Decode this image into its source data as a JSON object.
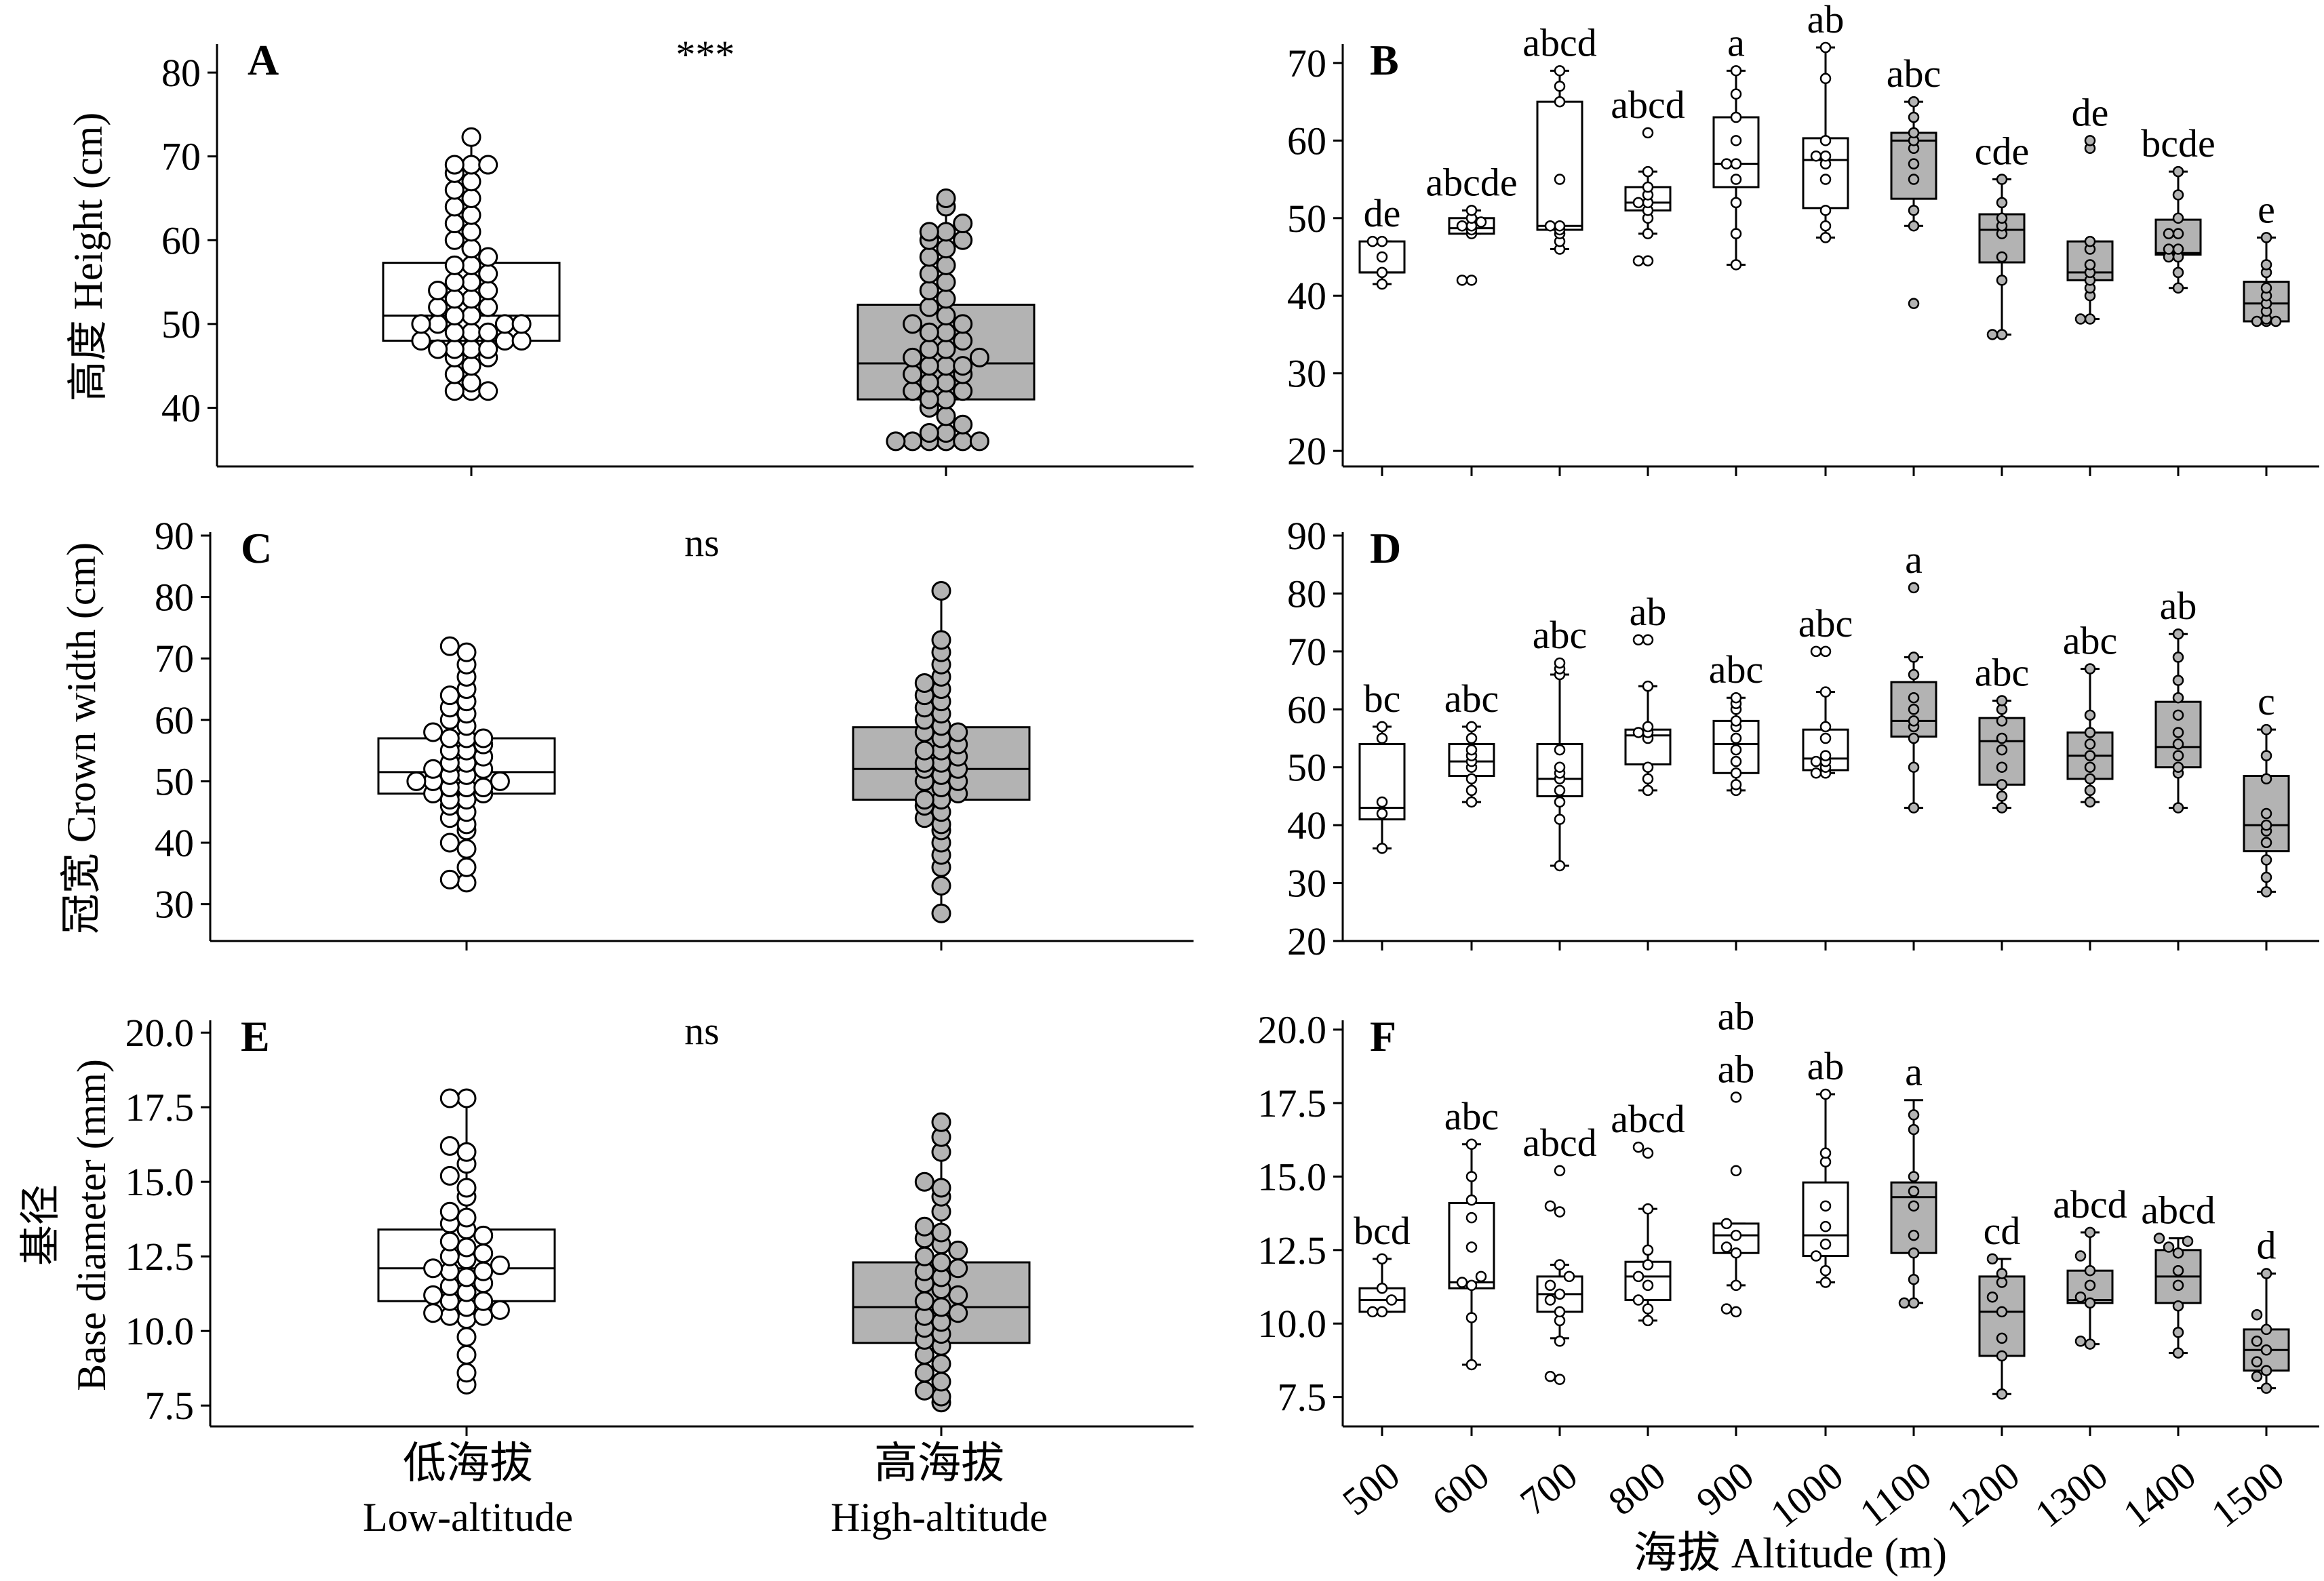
{
  "figure": {
    "panel_letters": [
      "A",
      "B",
      "C",
      "D",
      "E",
      "F"
    ],
    "x_groups": [
      "低海拔\nLow-altitude",
      "高海拔\nHigh-altitude"
    ],
    "x_group_labels_cn": [
      "低海拔",
      "高海拔"
    ],
    "x_group_labels_en": [
      "Low-altitude",
      "High-altitude"
    ],
    "altitude_xlabel": "海拔 Altitude (m)",
    "altitude_ticks": [
      "500",
      "600",
      "700",
      "800",
      "900",
      "1000",
      "1100",
      "1200",
      "1300",
      "1400",
      "1500"
    ],
    "colors": {
      "low": "#ffffff",
      "high": "#b3b3b3",
      "stroke": "#000000"
    }
  },
  "chart_data": [
    {
      "panel": "A",
      "type": "box",
      "ylabel": "高度 Height (cm)",
      "ylim": [
        33,
        83
      ],
      "yticks": [
        40,
        50,
        60,
        70,
        80
      ],
      "significance": "***",
      "categories": [
        "Low-altitude",
        "High-altitude"
      ],
      "boxes": [
        {
          "q1": 48,
          "median": 51,
          "q3": 57.3,
          "whisker_low": 42,
          "whisker_high": 72.3
        },
        {
          "q1": 41,
          "median": 45.3,
          "q3": 52.3,
          "whisker_low": 36,
          "whisker_high": 65
        }
      ],
      "points": [
        [
          42,
          42,
          42,
          43,
          44,
          45,
          46,
          46,
          47,
          47,
          47,
          47,
          48,
          48,
          48,
          49,
          49,
          49,
          50,
          50,
          50,
          50,
          51,
          51,
          52,
          52,
          53,
          53,
          54,
          54,
          55,
          55,
          56,
          57,
          57,
          58,
          59,
          60,
          61,
          62,
          63,
          64,
          65,
          66,
          67,
          68,
          69,
          69,
          69,
          72.3
        ],
        [
          36,
          36,
          36,
          36,
          36,
          36,
          37,
          37,
          38,
          39,
          40,
          41,
          41,
          42,
          42,
          43,
          43,
          44,
          44,
          45,
          45,
          45,
          46,
          46,
          47,
          47,
          48,
          49,
          49,
          50,
          50,
          51,
          52,
          53,
          54,
          55,
          56,
          57,
          58,
          59,
          60,
          60,
          61,
          61,
          62,
          64,
          65
        ]
      ]
    },
    {
      "panel": "B",
      "type": "box",
      "ylabel": "",
      "ylim": [
        18,
        72
      ],
      "yticks": [
        20,
        30,
        40,
        50,
        60,
        70
      ],
      "categories": [
        "500",
        "600",
        "700",
        "800",
        "900",
        "1000",
        "1100",
        "1200",
        "1300",
        "1400",
        "1500"
      ],
      "fill_group": [
        "low",
        "low",
        "low",
        "low",
        "low",
        "low",
        "high",
        "high",
        "high",
        "high",
        "high"
      ],
      "letters": [
        "de",
        "abcde",
        "abcd",
        "abcd",
        "a",
        "ab",
        "abc",
        "cde",
        "de",
        "bcde",
        "e"
      ],
      "boxes": [
        {
          "q1": 43,
          "median": 43,
          "q3": 47,
          "whisker_low": 41.5,
          "whisker_high": 47
        },
        {
          "q1": 48,
          "median": 48.7,
          "q3": 50,
          "whisker_low": 48,
          "whisker_high": 51
        },
        {
          "q1": 48.5,
          "median": 49,
          "q3": 65,
          "whisker_low": 46,
          "whisker_high": 69
        },
        {
          "q1": 51,
          "median": 52,
          "q3": 54,
          "whisker_low": 48,
          "whisker_high": 56
        },
        {
          "q1": 54,
          "median": 57,
          "q3": 63,
          "whisker_low": 44,
          "whisker_high": 69
        },
        {
          "q1": 51.3,
          "median": 57.5,
          "q3": 60.3,
          "whisker_low": 47.5,
          "whisker_high": 72
        },
        {
          "q1": 52.5,
          "median": 60,
          "q3": 61,
          "whisker_low": 49,
          "whisker_high": 65
        },
        {
          "q1": 44.3,
          "median": 48.5,
          "q3": 50.5,
          "whisker_low": 35,
          "whisker_high": 55
        },
        {
          "q1": 42,
          "median": 43,
          "q3": 47,
          "whisker_low": 37,
          "whisker_high": 47
        },
        {
          "q1": 45.3,
          "median": 45.5,
          "q3": 49.8,
          "whisker_low": 41,
          "whisker_high": 56
        },
        {
          "q1": 36.7,
          "median": 39,
          "q3": 41.8,
          "whisker_low": 36.7,
          "whisker_high": 47.5
        }
      ],
      "points": [
        [
          41.5,
          43,
          45,
          47,
          47
        ],
        [
          42,
          42,
          48,
          48.5,
          49,
          49,
          49.5,
          50,
          51
        ],
        [
          46,
          47,
          48,
          48.5,
          49,
          49,
          55,
          65,
          67,
          69
        ],
        [
          44.5,
          44.5,
          48,
          50,
          51,
          52,
          52,
          53,
          54,
          56,
          61
        ],
        [
          44,
          48,
          52,
          55,
          57,
          57,
          60,
          63,
          66,
          69
        ],
        [
          47.5,
          49,
          51,
          55,
          57,
          58,
          58,
          60,
          68,
          72
        ],
        [
          39,
          49,
          51,
          55,
          57,
          59,
          60,
          61,
          63,
          65
        ],
        [
          35,
          35,
          42,
          45,
          48,
          49,
          50,
          52,
          55
        ],
        [
          37,
          37,
          40,
          41,
          42,
          43,
          44,
          46,
          47,
          59,
          60
        ],
        [
          41,
          43,
          45,
          45,
          46,
          46,
          48,
          48,
          50,
          53,
          56
        ],
        [
          36.7,
          36.7,
          36.7,
          37,
          38,
          39,
          40,
          41,
          43,
          44,
          47.5
        ]
      ]
    },
    {
      "panel": "C",
      "type": "box",
      "ylabel": "冠宽 Crown width (cm)",
      "ylim": [
        24,
        90
      ],
      "yticks": [
        30,
        40,
        50,
        60,
        70,
        80,
        90
      ],
      "significance": "ns",
      "categories": [
        "Low-altitude",
        "High-altitude"
      ],
      "boxes": [
        {
          "q1": 48,
          "median": 51.5,
          "q3": 57,
          "whisker_low": 33.5,
          "whisker_high": 72
        },
        {
          "q1": 47,
          "median": 52,
          "q3": 58.8,
          "whisker_low": 28.5,
          "whisker_high": 81
        }
      ],
      "points": [
        [
          33.5,
          34,
          36,
          39,
          40,
          42,
          43,
          44,
          45,
          46,
          47,
          47,
          48,
          48,
          49,
          49,
          49,
          50,
          50,
          50,
          51,
          51,
          52,
          52,
          53,
          53,
          54,
          55,
          55,
          56,
          57,
          57,
          57,
          58,
          59,
          60,
          61,
          62,
          63,
          64,
          65,
          67,
          69,
          71,
          72
        ],
        [
          28.5,
          33,
          36,
          38,
          40,
          42,
          43,
          44,
          45,
          46,
          47,
          47,
          48,
          49,
          50,
          50,
          51,
          52,
          52,
          53,
          53,
          54,
          55,
          55,
          56,
          57,
          58,
          58,
          59,
          60,
          61,
          62,
          63,
          64,
          65,
          66,
          67,
          69,
          71,
          73,
          81
        ]
      ]
    },
    {
      "panel": "D",
      "type": "box",
      "ylabel": "",
      "ylim": [
        20,
        90
      ],
      "yticks": [
        20,
        30,
        40,
        50,
        60,
        70,
        80,
        90
      ],
      "categories": [
        "500",
        "600",
        "700",
        "800",
        "900",
        "1000",
        "1100",
        "1200",
        "1300",
        "1400",
        "1500"
      ],
      "fill_group": [
        "low",
        "low",
        "low",
        "low",
        "low",
        "low",
        "high",
        "high",
        "high",
        "high",
        "high"
      ],
      "letters": [
        "bc",
        "abc",
        "abc",
        "ab",
        "abc",
        "abc",
        "a",
        "abc",
        "abc",
        "ab",
        "c"
      ],
      "boxes": [
        {
          "q1": 41,
          "median": 43,
          "q3": 54,
          "whisker_low": 36,
          "whisker_high": 57
        },
        {
          "q1": 48.5,
          "median": 51,
          "q3": 54,
          "whisker_low": 44,
          "whisker_high": 57
        },
        {
          "q1": 45,
          "median": 48,
          "q3": 54,
          "whisker_low": 33,
          "whisker_high": 66
        },
        {
          "q1": 50.5,
          "median": 55.5,
          "q3": 56.5,
          "whisker_low": 46,
          "whisker_high": 64
        },
        {
          "q1": 49,
          "median": 54,
          "q3": 58,
          "whisker_low": 46,
          "whisker_high": 62
        },
        {
          "q1": 49.5,
          "median": 51.5,
          "q3": 56.5,
          "whisker_low": 49,
          "whisker_high": 63
        },
        {
          "q1": 55.3,
          "median": 58,
          "q3": 64.7,
          "whisker_low": 43,
          "whisker_high": 69
        },
        {
          "q1": 47,
          "median": 54.5,
          "q3": 58.5,
          "whisker_low": 43,
          "whisker_high": 61.5
        },
        {
          "q1": 48,
          "median": 52,
          "q3": 56,
          "whisker_low": 44,
          "whisker_high": 67
        },
        {
          "q1": 50,
          "median": 53.5,
          "q3": 61.3,
          "whisker_low": 43,
          "whisker_high": 73
        },
        {
          "q1": 35.5,
          "median": 40,
          "q3": 48.5,
          "whisker_low": 28.5,
          "whisker_high": 56.5
        }
      ],
      "points": [
        [
          36,
          42,
          44,
          55,
          57
        ],
        [
          44,
          46,
          48,
          50,
          51,
          52,
          53,
          55,
          57
        ],
        [
          33,
          41,
          44,
          46,
          48,
          49,
          50,
          53,
          66,
          67,
          68
        ],
        [
          46,
          48,
          50,
          55,
          56,
          56,
          57,
          64,
          72,
          72
        ],
        [
          46,
          47,
          49,
          51,
          53,
          55,
          57,
          58,
          60,
          61,
          62
        ],
        [
          49,
          49,
          50,
          51,
          51,
          52,
          55,
          57,
          63,
          70,
          70
        ],
        [
          43,
          50,
          55,
          57,
          58,
          60,
          62,
          66,
          69,
          81
        ],
        [
          43,
          45,
          47,
          50,
          53,
          55,
          58,
          60,
          61.5
        ],
        [
          44,
          46,
          48,
          50,
          52,
          54,
          56,
          59,
          67
        ],
        [
          43,
          49,
          50,
          52,
          54,
          56,
          59,
          62,
          65,
          69,
          73
        ],
        [
          28.5,
          31,
          34,
          37,
          39,
          40,
          42,
          48,
          52,
          56.5
        ]
      ]
    },
    {
      "panel": "E",
      "type": "box",
      "ylabel": "基径 Base diameter (mm)",
      "ylim": [
        6.8,
        20.3
      ],
      "yticks": [
        "7.5",
        "10.0",
        "12.5",
        "15.0",
        "17.5",
        "20.0"
      ],
      "significance": "ns",
      "categories": [
        "Low-altitude",
        "High-altitude"
      ],
      "boxes": [
        {
          "q1": 11,
          "median": 12.1,
          "q3": 13.4,
          "whisker_low": 8.2,
          "whisker_high": 17.8
        },
        {
          "q1": 9.6,
          "median": 10.8,
          "q3": 12.3,
          "whisker_low": 7.6,
          "whisker_high": 17
        }
      ],
      "points": [
        [
          8.2,
          8.6,
          9.2,
          9.8,
          10.4,
          10.5,
          10.5,
          10.6,
          10.7,
          10.8,
          11,
          11,
          11.2,
          11.3,
          11.5,
          11.6,
          11.8,
          12,
          12,
          12.1,
          12.2,
          12.4,
          12.5,
          12.6,
          12.8,
          13,
          13.2,
          13.4,
          13.6,
          13.8,
          14,
          14.5,
          14.8,
          15.2,
          15.6,
          16,
          16.2,
          17.8,
          17.8
        ],
        [
          7.6,
          7.8,
          8,
          8.3,
          8.6,
          8.9,
          9.2,
          9.5,
          9.7,
          9.9,
          10.1,
          10.3,
          10.5,
          10.6,
          10.8,
          11,
          11.2,
          11.4,
          11.6,
          11.8,
          12,
          12.1,
          12.3,
          12.5,
          12.7,
          12.9,
          13.1,
          13.3,
          13.5,
          14,
          14.5,
          14.8,
          15,
          16,
          16.5,
          17
        ]
      ]
    },
    {
      "panel": "F",
      "type": "box",
      "ylabel": "",
      "ylim": [
        6.5,
        20.2
      ],
      "yticks": [
        "7.5",
        "10.0",
        "12.5",
        "15.0",
        "17.5",
        "20.0"
      ],
      "categories": [
        "500",
        "600",
        "700",
        "800",
        "900",
        "1000",
        "1100",
        "1200",
        "1300",
        "1400",
        "1500"
      ],
      "fill_group": [
        "low",
        "low",
        "low",
        "low",
        "low",
        "low",
        "high",
        "high",
        "high",
        "high",
        "high"
      ],
      "letters": [
        "bcd",
        "abc",
        "abcd",
        "abcd",
        "ab\nab",
        "ab",
        "a",
        "cd",
        "abcd",
        "abcd",
        "d"
      ],
      "letters_list": [
        [
          "bcd"
        ],
        [
          "abc"
        ],
        [
          "abcd"
        ],
        [
          "abcd"
        ],
        [
          "ab",
          "ab"
        ],
        [
          "ab"
        ],
        [
          "a"
        ],
        [
          "cd"
        ],
        [
          "abcd"
        ],
        [
          "abcd"
        ],
        [
          "d"
        ]
      ],
      "boxes": [
        {
          "q1": 10.4,
          "median": 10.8,
          "q3": 11.2,
          "whisker_low": 10.4,
          "whisker_high": 12.2
        },
        {
          "q1": 11.2,
          "median": 11.4,
          "q3": 14.1,
          "whisker_low": 8.6,
          "whisker_high": 16.1
        },
        {
          "q1": 10.4,
          "median": 11,
          "q3": 11.6,
          "whisker_low": 9.5,
          "whisker_high": 12
        },
        {
          "q1": 10.8,
          "median": 11.6,
          "q3": 12.1,
          "whisker_low": 10.1,
          "whisker_high": 13.9
        },
        {
          "q1": 12.4,
          "median": 13,
          "q3": 13.4,
          "whisker_low": 11.3,
          "whisker_high": 13.4
        },
        {
          "q1": 12.3,
          "median": 13,
          "q3": 14.8,
          "whisker_low": 11.4,
          "whisker_high": 17.8
        },
        {
          "q1": 12.4,
          "median": 14.3,
          "q3": 14.8,
          "whisker_low": 10.7,
          "whisker_high": 17.6
        },
        {
          "q1": 8.9,
          "median": 10.4,
          "q3": 11.6,
          "whisker_low": 7.6,
          "whisker_high": 12.2
        },
        {
          "q1": 10.7,
          "median": 10.8,
          "q3": 11.8,
          "whisker_low": 9.3,
          "whisker_high": 13.1
        },
        {
          "q1": 10.7,
          "median": 11.6,
          "q3": 12.5,
          "whisker_low": 9,
          "whisker_high": 12.9
        },
        {
          "q1": 8.4,
          "median": 9.1,
          "q3": 9.8,
          "whisker_low": 7.8,
          "whisker_high": 11.7
        }
      ],
      "points": [
        [
          10.4,
          10.4,
          10.8,
          11.2,
          12.2
        ],
        [
          8.6,
          10.2,
          11.3,
          11.4,
          11.6,
          12.6,
          13.6,
          14.2,
          15,
          16.1
        ],
        [
          8.1,
          8.2,
          9.4,
          10.1,
          10.4,
          10.8,
          11,
          11.3,
          11.6,
          12,
          13.8,
          14,
          15.2
        ],
        [
          10.1,
          10.5,
          10.8,
          11.3,
          11.6,
          12,
          12.5,
          13.9,
          15.8,
          16
        ],
        [
          10.4,
          10.5,
          11.3,
          12.4,
          12.6,
          13,
          13.4,
          15.2,
          17.7
        ],
        [
          11.4,
          11.8,
          12.3,
          12.7,
          13.3,
          14,
          15.5,
          15.8,
          17.8
        ],
        [
          10.7,
          10.7,
          11.5,
          12.4,
          13,
          14,
          14.5,
          15,
          16.6,
          17.1
        ],
        [
          7.6,
          8.9,
          9.5,
          10.4,
          10.9,
          11.4,
          11.7,
          12.2
        ],
        [
          9.3,
          9.4,
          10.7,
          10.9,
          11.3,
          11.8,
          12.3,
          13.1
        ],
        [
          9,
          9.7,
          10.6,
          11.3,
          11.8,
          12.4,
          12.6,
          12.8,
          12.9
        ],
        [
          7.8,
          8.2,
          8.4,
          8.7,
          9.1,
          9.4,
          9.8,
          10.3,
          11.7
        ]
      ]
    }
  ]
}
